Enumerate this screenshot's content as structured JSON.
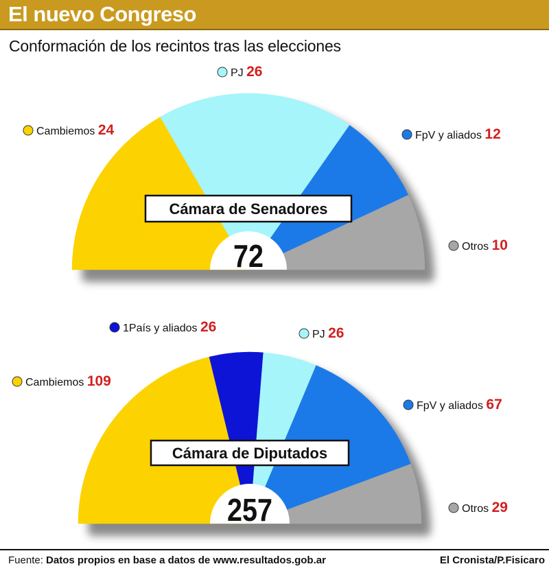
{
  "header": {
    "title": "El nuevo Congreso",
    "subtitle": "Conformación de los recintos tras las elecciones"
  },
  "colors": {
    "header_bg": "#c99a1f",
    "cambiemos": "#fcd200",
    "pj": "#a5f5fb",
    "fpv": "#1c7ae8",
    "otros": "#a7a7a7",
    "unpais": "#0d14d6",
    "number_red": "#d11f1f"
  },
  "chart_data": [
    {
      "type": "pie",
      "variant": "semicircle",
      "title": "Cámara de Senadores",
      "total": "72",
      "slices": [
        {
          "label": "Cambiemos",
          "value": 24,
          "color": "#fcd200"
        },
        {
          "label": "PJ",
          "value": 26,
          "color": "#a5f5fb"
        },
        {
          "label": "FpV y aliados",
          "value": 12,
          "color": "#1c7ae8"
        },
        {
          "label": "Otros",
          "value": 10,
          "color": "#a7a7a7"
        }
      ]
    },
    {
      "type": "pie",
      "variant": "semicircle",
      "title": "Cámara de Diputados",
      "total": "257",
      "slices": [
        {
          "label": "Cambiemos",
          "value": 109,
          "color": "#fcd200"
        },
        {
          "label": "1País y aliados",
          "value": 26,
          "color": "#0d14d6"
        },
        {
          "label": "PJ",
          "value": 26,
          "color": "#a5f5fb"
        },
        {
          "label": "FpV y aliados",
          "value": 67,
          "color": "#1c7ae8"
        },
        {
          "label": "Otros",
          "value": 29,
          "color": "#a7a7a7"
        }
      ]
    }
  ],
  "footer": {
    "source_prefix": "Fuente: ",
    "source_text": "Datos propios en base a datos de www.resultados.gob.ar",
    "credit": "El Cronista/P.Fisicaro"
  }
}
